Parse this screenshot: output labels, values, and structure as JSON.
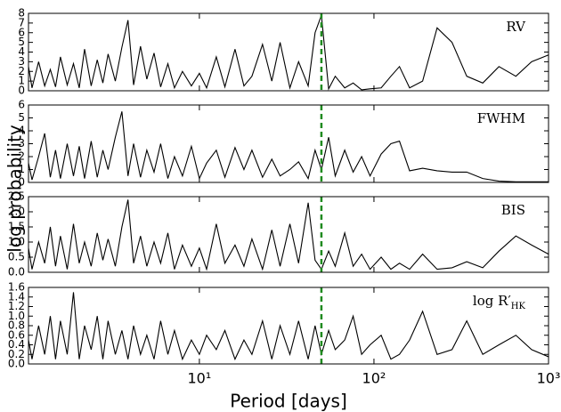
{
  "chart_data": [
    {
      "type": "line",
      "label": "RV",
      "ylabel": "log probability",
      "color": "#000000",
      "xlim": [
        1.05,
        1000
      ],
      "log_x": true,
      "ylim": [
        0,
        8
      ],
      "yticks": [
        0,
        1,
        2,
        3,
        4,
        5,
        6,
        7,
        8
      ],
      "marker_x": 50,
      "marker_color": "#1f8a1f",
      "x": [
        1.05,
        1.1,
        1.2,
        1.3,
        1.4,
        1.5,
        1.6,
        1.75,
        1.9,
        2.05,
        2.2,
        2.4,
        2.6,
        2.8,
        3.0,
        3.3,
        3.6,
        3.9,
        4.2,
        4.6,
        5.0,
        5.5,
        6.0,
        6.6,
        7.2,
        8.0,
        9.0,
        10,
        11,
        12.5,
        14,
        16,
        18,
        20,
        23,
        26,
        29,
        33,
        37,
        42,
        46,
        50,
        55,
        60,
        68,
        76,
        85,
        95,
        110,
        125,
        140,
        160,
        190,
        230,
        280,
        340,
        420,
        520,
        650,
        800,
        1000
      ],
      "values": [
        2.5,
        0.3,
        3.0,
        0.5,
        2.2,
        0.4,
        3.5,
        0.6,
        2.8,
        0.3,
        4.3,
        0.5,
        3.2,
        0.8,
        3.8,
        1.0,
        4.5,
        7.3,
        0.6,
        4.6,
        1.2,
        3.9,
        0.4,
        2.8,
        0.3,
        2.0,
        0.5,
        1.8,
        0.3,
        3.5,
        0.4,
        4.3,
        0.5,
        1.5,
        4.8,
        1.0,
        5.0,
        0.3,
        3.0,
        0.5,
        6.0,
        7.8,
        0.2,
        1.5,
        0.3,
        0.8,
        0.1,
        0.2,
        0.3,
        1.5,
        2.5,
        0.3,
        1.0,
        6.5,
        5.0,
        1.5,
        0.8,
        2.5,
        1.5,
        3.0,
        3.7
      ]
    },
    {
      "type": "line",
      "label": "FWHM",
      "color": "#000000",
      "xlim": [
        1.05,
        1000
      ],
      "log_x": true,
      "ylim": [
        0,
        6
      ],
      "yticks": [
        0,
        1,
        2,
        3,
        4,
        5,
        6
      ],
      "marker_x": 50,
      "marker_color": "#1f8a1f",
      "x": [
        1.05,
        1.1,
        1.2,
        1.3,
        1.4,
        1.5,
        1.6,
        1.75,
        1.9,
        2.05,
        2.2,
        2.4,
        2.6,
        2.8,
        3.0,
        3.3,
        3.6,
        3.9,
        4.2,
        4.6,
        5.0,
        5.5,
        6.0,
        6.6,
        7.2,
        8.0,
        9.0,
        10,
        11,
        12.5,
        14,
        16,
        18,
        20,
        23,
        26,
        29,
        33,
        37,
        42,
        46,
        50,
        55,
        60,
        68,
        76,
        85,
        95,
        110,
        125,
        140,
        160,
        190,
        230,
        280,
        340,
        420,
        520,
        650,
        800,
        1000
      ],
      "values": [
        1.5,
        0.2,
        2.0,
        3.8,
        0.4,
        2.5,
        0.3,
        3.0,
        0.5,
        2.8,
        0.3,
        3.2,
        0.4,
        2.5,
        1.0,
        3.5,
        5.5,
        0.5,
        3.0,
        0.4,
        2.5,
        0.8,
        3.0,
        0.3,
        2.0,
        0.5,
        2.8,
        0.3,
        1.5,
        2.5,
        0.4,
        2.7,
        1.0,
        2.5,
        0.4,
        1.8,
        0.5,
        1.0,
        1.6,
        0.3,
        2.5,
        1.0,
        3.5,
        0.5,
        2.5,
        0.8,
        2.0,
        0.5,
        2.2,
        3.0,
        3.2,
        0.9,
        1.1,
        0.9,
        0.8,
        0.8,
        0.3,
        0.1,
        0.05,
        0.05,
        0.05
      ]
    },
    {
      "type": "line",
      "label": "BIS",
      "color": "#000000",
      "xlim": [
        1.05,
        1000
      ],
      "log_x": true,
      "ylim": [
        0,
        2.5
      ],
      "yticks": [
        {
          "value": 0,
          "label": "0.0"
        },
        {
          "value": 0.5,
          "label": "0.5"
        },
        {
          "value": 1,
          "label": "1.0"
        },
        {
          "value": 1.5,
          "label": "1.5"
        },
        {
          "value": 2,
          "label": "2.0"
        },
        {
          "value": 2.5,
          "label": "2.5"
        }
      ],
      "marker_x": 50,
      "marker_color": "#1f8a1f",
      "x": [
        1.05,
        1.1,
        1.2,
        1.3,
        1.4,
        1.5,
        1.6,
        1.75,
        1.9,
        2.05,
        2.2,
        2.4,
        2.6,
        2.8,
        3.0,
        3.3,
        3.6,
        3.9,
        4.2,
        4.6,
        5.0,
        5.5,
        6.0,
        6.6,
        7.2,
        8.0,
        9.0,
        10,
        11,
        12.5,
        14,
        16,
        18,
        20,
        23,
        26,
        29,
        33,
        37,
        42,
        46,
        50,
        55,
        60,
        68,
        76,
        85,
        95,
        110,
        125,
        140,
        160,
        190,
        230,
        280,
        340,
        420,
        520,
        650,
        800,
        1000
      ],
      "values": [
        0.8,
        0.1,
        1.0,
        0.3,
        1.5,
        0.2,
        1.2,
        0.1,
        1.6,
        0.3,
        1.0,
        0.2,
        1.3,
        0.4,
        1.1,
        0.2,
        1.5,
        2.4,
        0.3,
        1.2,
        0.2,
        1.0,
        0.3,
        1.3,
        0.1,
        0.9,
        0.2,
        0.8,
        0.1,
        1.6,
        0.3,
        0.9,
        0.2,
        1.1,
        0.1,
        1.4,
        0.2,
        1.6,
        0.3,
        2.3,
        0.4,
        0.1,
        0.7,
        0.2,
        1.3,
        0.2,
        0.6,
        0.1,
        0.5,
        0.1,
        0.3,
        0.1,
        0.6,
        0.1,
        0.15,
        0.35,
        0.15,
        0.7,
        1.2,
        0.9,
        0.6
      ]
    },
    {
      "type": "line",
      "label": "log R′",
      "label_sub": "HK",
      "xlabel": "Period [days]",
      "color": "#000000",
      "xlim": [
        1.05,
        1000
      ],
      "log_x": true,
      "xticks": [
        {
          "value": 10,
          "label": "10¹"
        },
        {
          "value": 100,
          "label": "10²"
        },
        {
          "value": 1000,
          "label": "10³"
        }
      ],
      "ylim": [
        0,
        1.6
      ],
      "yticks": [
        {
          "value": 0,
          "label": "0.0"
        },
        {
          "value": 0.2,
          "label": "0.2"
        },
        {
          "value": 0.4,
          "label": "0.4"
        },
        {
          "value": 0.6,
          "label": "0.6"
        },
        {
          "value": 0.8,
          "label": "0.8"
        },
        {
          "value": 1,
          "label": "1.0"
        },
        {
          "value": 1.2,
          "label": "1.2"
        },
        {
          "value": 1.4,
          "label": "1.4"
        },
        {
          "value": 1.6,
          "label": "1.6"
        }
      ],
      "marker_x": 50,
      "marker_color": "#1f8a1f",
      "x": [
        1.05,
        1.1,
        1.2,
        1.3,
        1.4,
        1.5,
        1.6,
        1.75,
        1.9,
        2.05,
        2.2,
        2.4,
        2.6,
        2.8,
        3.0,
        3.3,
        3.6,
        3.9,
        4.2,
        4.6,
        5.0,
        5.5,
        6.0,
        6.6,
        7.2,
        8.0,
        9.0,
        10,
        11,
        12.5,
        14,
        16,
        18,
        20,
        23,
        26,
        29,
        33,
        37,
        42,
        46,
        50,
        55,
        60,
        68,
        76,
        85,
        95,
        110,
        125,
        140,
        160,
        190,
        230,
        280,
        340,
        420,
        520,
        650,
        800,
        1000
      ],
      "values": [
        0.5,
        0.1,
        0.8,
        0.2,
        1.0,
        0.1,
        0.9,
        0.2,
        1.5,
        0.1,
        0.8,
        0.3,
        1.0,
        0.1,
        0.9,
        0.2,
        0.7,
        0.1,
        0.8,
        0.2,
        0.6,
        0.1,
        0.9,
        0.2,
        0.7,
        0.1,
        0.5,
        0.2,
        0.6,
        0.3,
        0.7,
        0.1,
        0.5,
        0.2,
        0.9,
        0.1,
        0.8,
        0.2,
        0.9,
        0.1,
        0.8,
        0.2,
        0.7,
        0.3,
        0.5,
        1.0,
        0.2,
        0.4,
        0.6,
        0.1,
        0.2,
        0.5,
        1.1,
        0.2,
        0.3,
        0.9,
        0.2,
        0.4,
        0.6,
        0.3,
        0.15
      ]
    }
  ]
}
